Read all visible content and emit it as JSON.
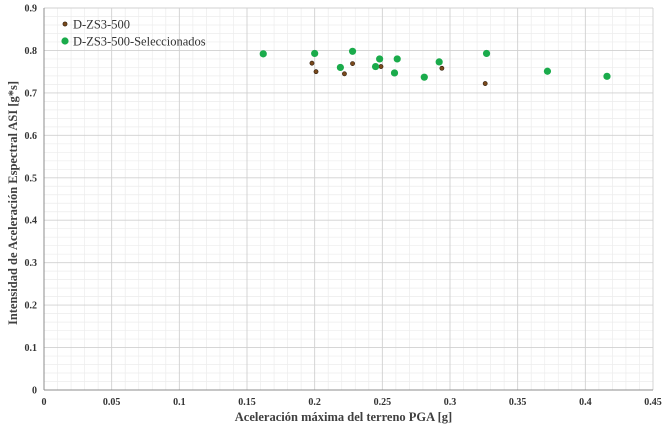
{
  "chart_data": {
    "type": "scatter",
    "xlabel": "Aceleración máxima del terreno PGA [g]",
    "ylabel": "Intensidad de Aceleración Espectral ASI [g*s]",
    "xlim": [
      0,
      0.45
    ],
    "ylim": [
      0,
      0.9
    ],
    "x_ticks": [
      "0",
      "0.05",
      "0.1",
      "0.15",
      "0.2",
      "0.25",
      "0.3",
      "0.35",
      "0.4",
      "0.45"
    ],
    "y_ticks": [
      "0",
      "0.1",
      "0.2",
      "0.3",
      "0.4",
      "0.5",
      "0.6",
      "0.7",
      "0.8",
      "0.9"
    ],
    "grid": true,
    "legend_position": "top-left",
    "series": [
      {
        "name": "D-ZS3-500",
        "color": "#7a4a1c",
        "marker": "small-circle",
        "points": [
          {
            "x": 0.198,
            "y": 0.77
          },
          {
            "x": 0.201,
            "y": 0.75
          },
          {
            "x": 0.222,
            "y": 0.745
          },
          {
            "x": 0.228,
            "y": 0.769
          },
          {
            "x": 0.249,
            "y": 0.762
          },
          {
            "x": 0.294,
            "y": 0.758
          },
          {
            "x": 0.326,
            "y": 0.722
          }
        ]
      },
      {
        "name": "D-ZS3-500-Seleccionados",
        "color": "#1aab4b",
        "marker": "large-circle",
        "points": [
          {
            "x": 0.162,
            "y": 0.792
          },
          {
            "x": 0.2,
            "y": 0.793
          },
          {
            "x": 0.219,
            "y": 0.76
          },
          {
            "x": 0.228,
            "y": 0.798
          },
          {
            "x": 0.245,
            "y": 0.762
          },
          {
            "x": 0.248,
            "y": 0.78
          },
          {
            "x": 0.259,
            "y": 0.747
          },
          {
            "x": 0.261,
            "y": 0.78
          },
          {
            "x": 0.281,
            "y": 0.737
          },
          {
            "x": 0.292,
            "y": 0.773
          },
          {
            "x": 0.327,
            "y": 0.793
          },
          {
            "x": 0.372,
            "y": 0.751
          },
          {
            "x": 0.416,
            "y": 0.739
          }
        ]
      }
    ]
  }
}
